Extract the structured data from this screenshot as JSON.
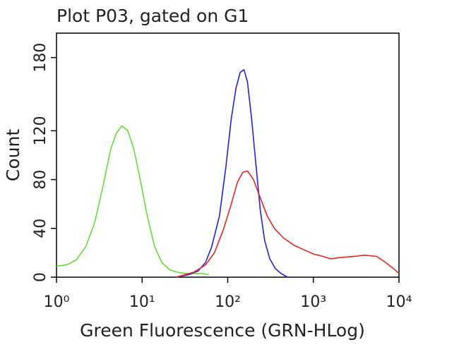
{
  "chart_data": {
    "type": "line",
    "title": "Plot P03, gated on G1",
    "x_label": "Green Fluorescence (GRN-HLog)",
    "y_label": "Count",
    "xscale": "log",
    "xlim": [
      1,
      10000
    ],
    "xticks": [
      {
        "value": 1,
        "label": "10⁰"
      },
      {
        "value": 10,
        "label": "10¹"
      },
      {
        "value": 100,
        "label": "10²"
      },
      {
        "value": 1000,
        "label": "10³"
      },
      {
        "value": 10000,
        "label": "10⁴"
      }
    ],
    "ylim": [
      0,
      200
    ],
    "yticks": [
      0,
      40,
      80,
      120,
      180
    ],
    "series": [
      {
        "name": null,
        "color": "#66dd33",
        "x": [
          1,
          1.3,
          1.7,
          2.2,
          2.8,
          3.5,
          4.3,
          5,
          5.8,
          6.8,
          8,
          9.5,
          11.5,
          14,
          17,
          21,
          26,
          32,
          40,
          50,
          60
        ],
        "values": [
          9,
          10,
          14,
          25,
          45,
          75,
          105,
          118,
          124,
          120,
          105,
          80,
          50,
          25,
          12,
          6,
          4,
          3,
          3,
          3,
          2
        ]
      },
      {
        "name": null,
        "color": "#2222dd",
        "x": [
          25,
          35,
          45,
          55,
          65,
          80,
          95,
          110,
          125,
          140,
          155,
          170,
          190,
          215,
          240,
          270,
          310,
          360,
          420,
          500
        ],
        "values": [
          0,
          2,
          5,
          12,
          25,
          50,
          90,
          130,
          155,
          168,
          170,
          160,
          130,
          90,
          55,
          30,
          15,
          7,
          3,
          0
        ]
      },
      {
        "name": null,
        "color": "#ee2222",
        "x": [
          25,
          40,
          55,
          70,
          90,
          110,
          130,
          150,
          170,
          200,
          240,
          290,
          350,
          450,
          600,
          800,
          1000,
          1300,
          1600,
          2000,
          3000,
          4000,
          5500,
          7000,
          9000,
          10000
        ],
        "values": [
          0,
          4,
          10,
          20,
          40,
          60,
          78,
          86,
          87,
          80,
          65,
          50,
          40,
          32,
          26,
          22,
          19,
          17,
          15,
          16,
          17,
          18,
          17,
          12,
          6,
          3
        ]
      }
    ]
  }
}
